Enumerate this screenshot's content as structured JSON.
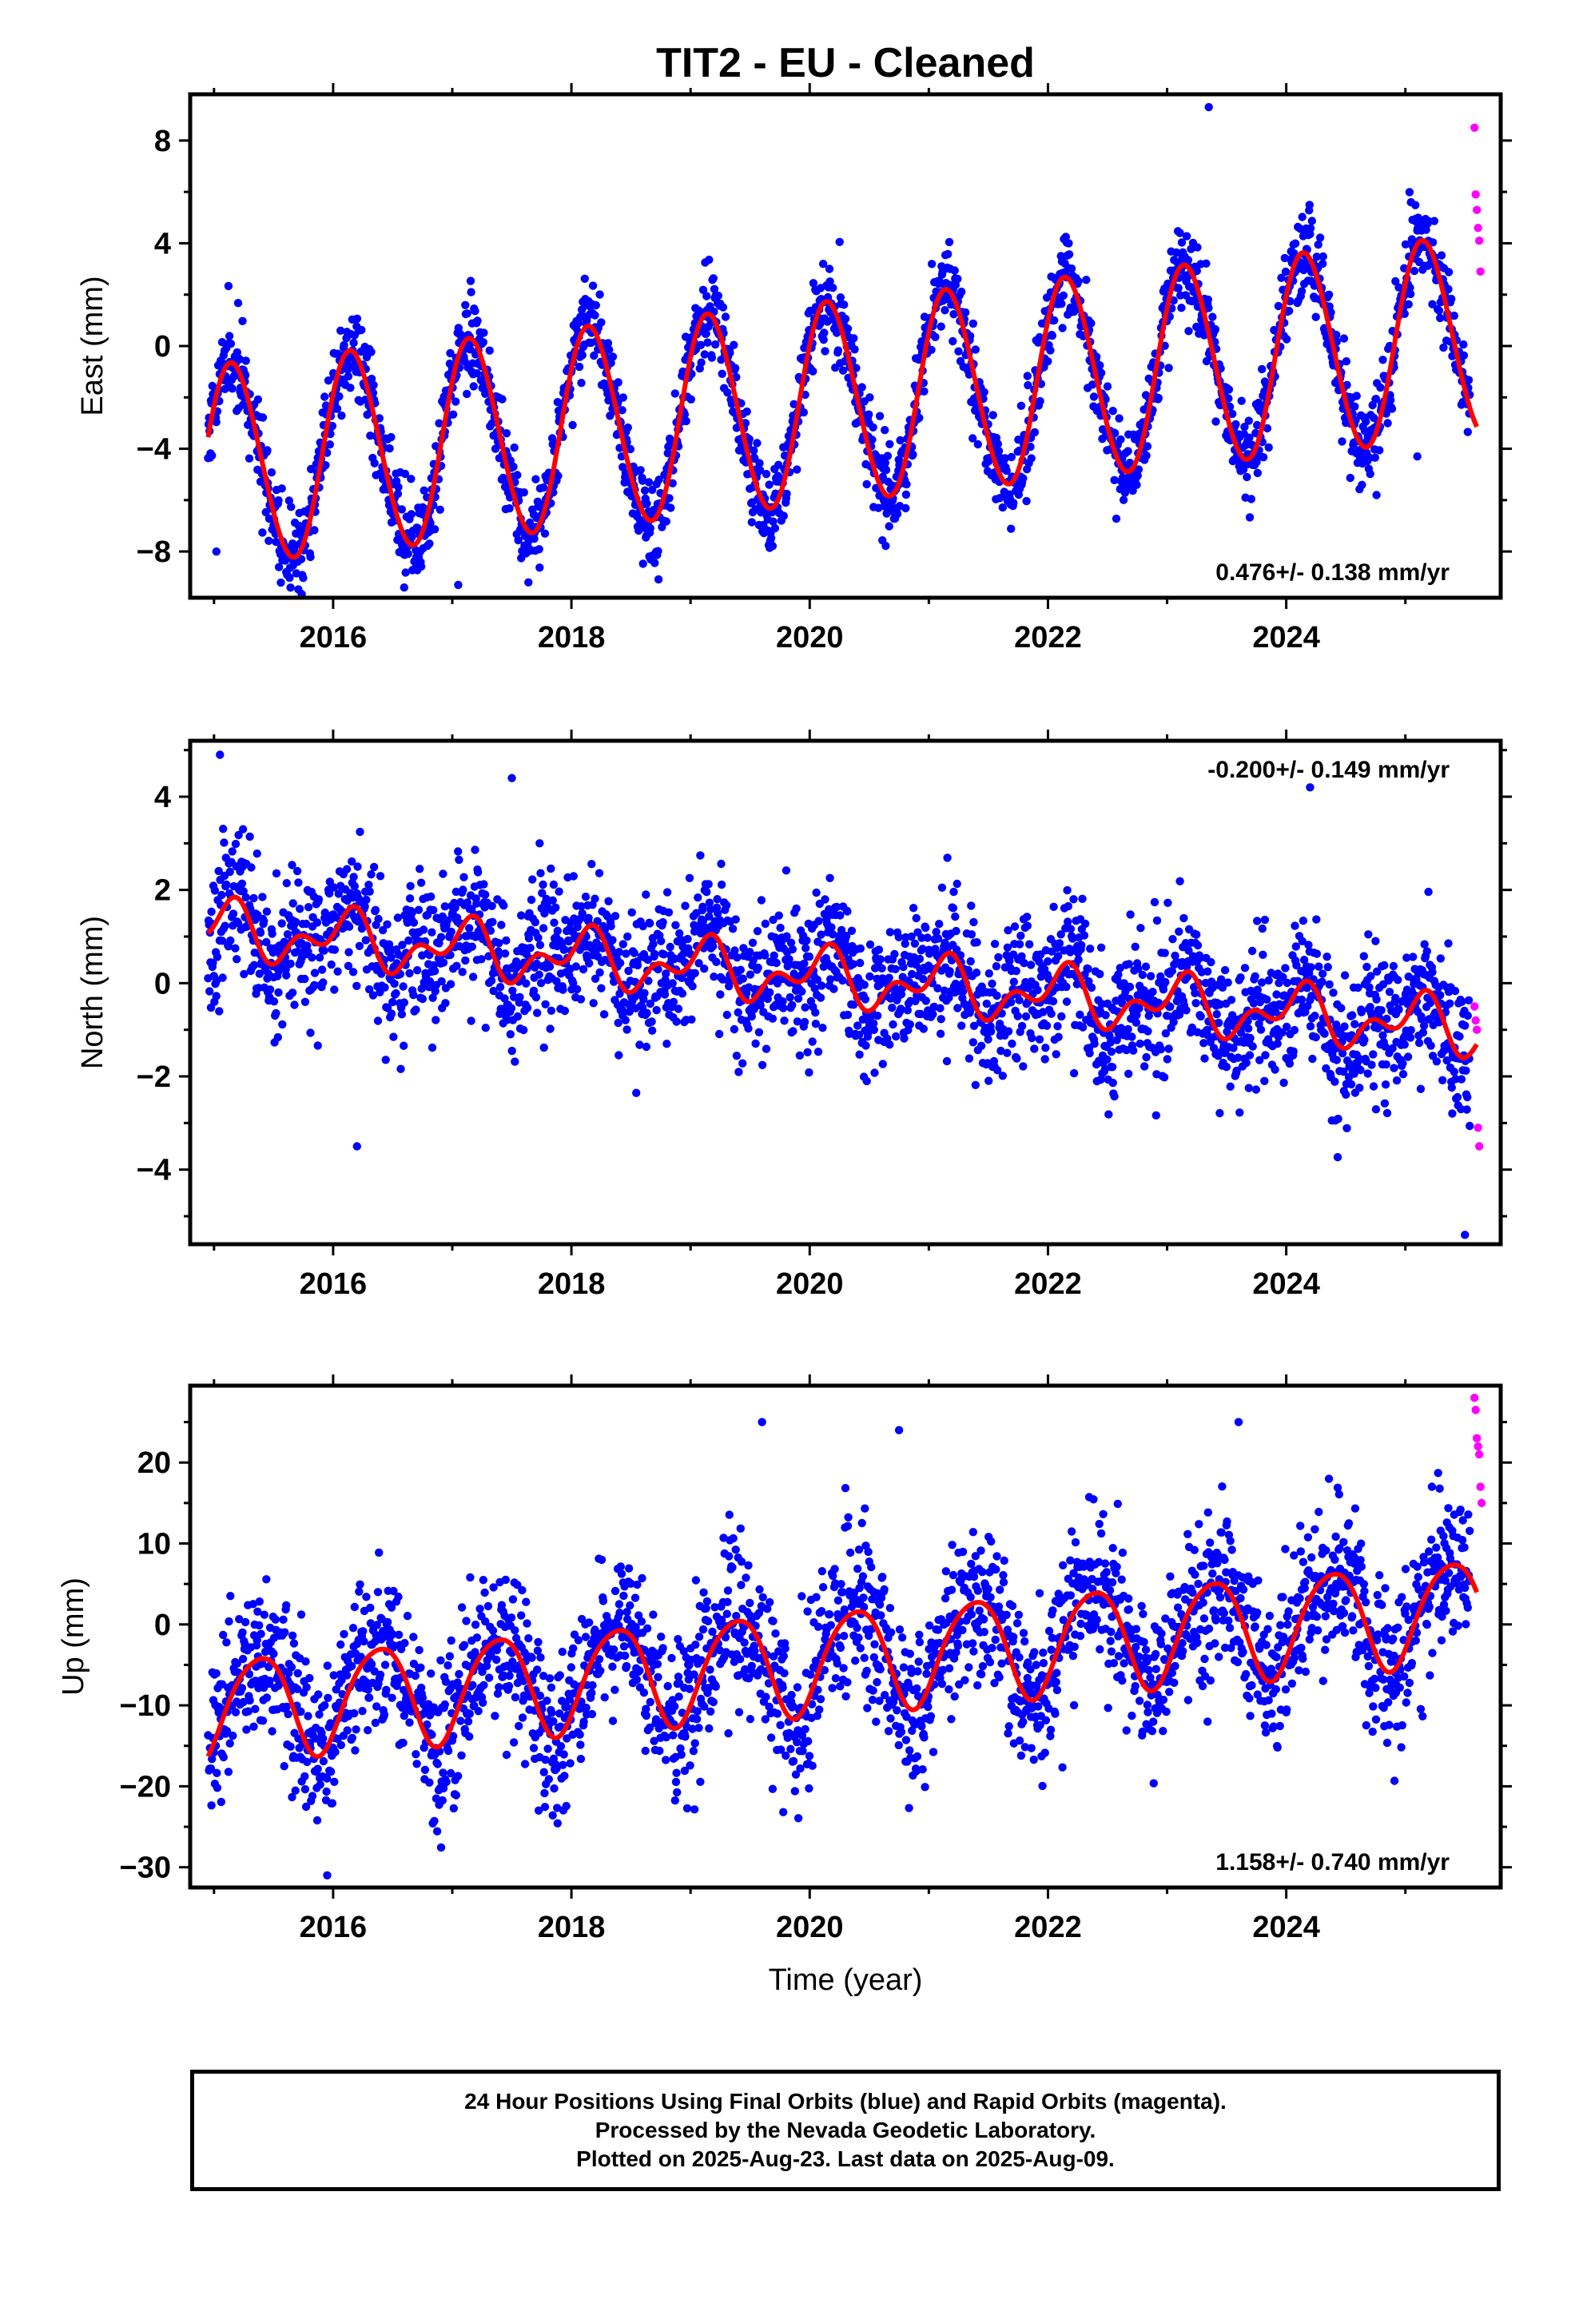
{
  "title": "TIT2  - EU - Cleaned",
  "xlabel": "Time (year)",
  "colors": {
    "final": "#0000ff",
    "rapid": "#ff00ff",
    "model": "#ff0000",
    "axis": "#000000"
  },
  "chart_data": [
    {
      "type": "scatter",
      "ylabel": "East (mm)",
      "ylim": [
        -9.8,
        9.8
      ],
      "xlim": [
        2014.8,
        2025.8
      ],
      "yticks": [
        -8,
        -4,
        0,
        4,
        8
      ],
      "xticks": [
        2016,
        2018,
        2020,
        2022,
        2024
      ],
      "rate_label": "0.476+/- 0.138 mm/yr",
      "rate_position": "bottom-right",
      "model": {
        "start": 2014.95,
        "end": 2025.6,
        "trend": 0.476,
        "offset": -2.3,
        "amp1": 3.9,
        "phase1": 0.155,
        "amp2": 0.2,
        "phase2": 0.05
      },
      "noise_sd": 0.85,
      "seed": 11,
      "series": [
        {
          "x": [
            2015.02,
            2017.05,
            2023.35,
            2025.1
          ],
          "y": [
            -8.0,
            -9.3,
            9.3,
            -4.3
          ]
        },
        {
          "x": [
            2025.58,
            2025.59,
            2025.6,
            2025.61,
            2025.62,
            2025.63
          ],
          "y": [
            8.5,
            5.9,
            5.3,
            4.6,
            4.1,
            2.9
          ]
        }
      ]
    },
    {
      "type": "scatter",
      "ylabel": "North (mm)",
      "ylim": [
        -5.6,
        5.2
      ],
      "xlim": [
        2014.8,
        2025.8
      ],
      "yticks": [
        -4,
        -2,
        0,
        2,
        4
      ],
      "xticks": [
        2016,
        2018,
        2020,
        2022,
        2024
      ],
      "rate_label": "-0.200+/- 0.149 mm/yr",
      "rate_position": "top-right",
      "model": {
        "start": 2014.95,
        "end": 2025.6,
        "trend": -0.2,
        "offset": 0.15,
        "amp1": 0.45,
        "phase1": 0.1,
        "amp2": 0.35,
        "phase2": 0.2
      },
      "noise_sd": 0.75,
      "seed": 23,
      "series": [
        {
          "x": [
            2015.05,
            2017.5,
            2024.2,
            2025.5,
            2016.2
          ],
          "y": [
            4.9,
            4.4,
            4.2,
            -5.4,
            -3.5
          ]
        },
        {
          "x": [
            2025.58,
            2025.59,
            2025.6,
            2025.61,
            2025.62
          ],
          "y": [
            -0.5,
            -0.8,
            -1.0,
            -3.1,
            -3.5
          ]
        }
      ]
    },
    {
      "type": "scatter",
      "ylabel": "Up (mm)",
      "ylim": [
        -32.5,
        29.5
      ],
      "xlim": [
        2014.8,
        2025.8
      ],
      "yticks": [
        -30,
        -20,
        -10,
        0,
        10,
        20
      ],
      "xticks": [
        2016,
        2018,
        2020,
        2022,
        2024
      ],
      "rate_label": "1.158+/- 0.740 mm/yr",
      "rate_position": "bottom-right",
      "model": {
        "start": 2014.95,
        "end": 2025.6,
        "trend": 1.158,
        "offset": -4.5,
        "amp1": 6.3,
        "phase1": 0.38,
        "amp2": 0.8,
        "phase2": 0.1
      },
      "noise_sd": 4.8,
      "seed": 37,
      "series": [
        {
          "x": [
            2015.95,
            2019.6,
            2020.75,
            2023.6,
            2018.95
          ],
          "y": [
            -31.0,
            25.0,
            24.0,
            25.0,
            -13.5
          ]
        },
        {
          "x": [
            2025.58,
            2025.59,
            2025.6,
            2025.61,
            2025.62,
            2025.63,
            2025.64
          ],
          "y": [
            28.0,
            26.5,
            23.0,
            22.0,
            21.0,
            17.0,
            15.0
          ]
        }
      ]
    }
  ],
  "caption": {
    "line1": "24 Hour Positions Using Final Orbits (blue) and Rapid Orbits (magenta).",
    "line2": "Processed by the Nevada Geodetic Laboratory.",
    "line3": "Plotted on 2025-Aug-23. Last data on 2025-Aug-09."
  }
}
